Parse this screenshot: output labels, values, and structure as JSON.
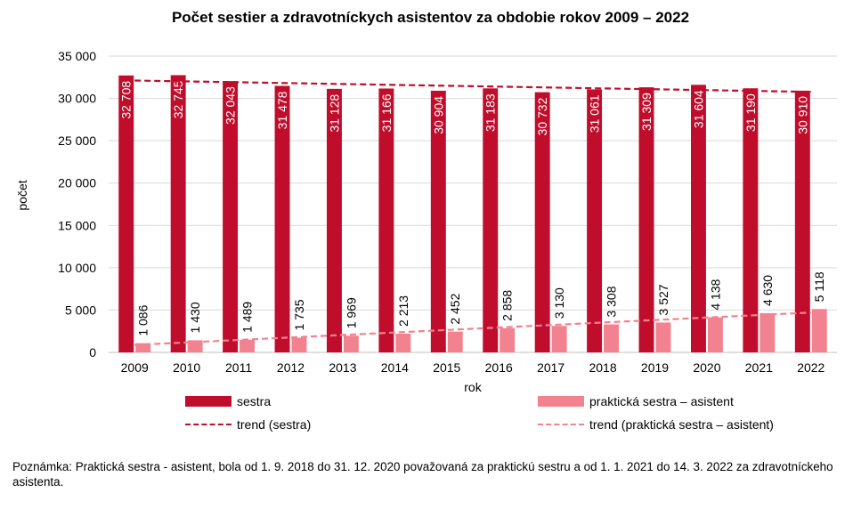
{
  "chart_data": {
    "type": "bar",
    "title": "Počet sestier a zdravotníckych asistentov za obdobie rokov 2009 – 2022",
    "xlabel": "rok",
    "ylabel": "počet",
    "ylim": [
      0,
      35000
    ],
    "yticks": [
      0,
      5000,
      10000,
      15000,
      20000,
      25000,
      30000,
      35000
    ],
    "ytick_labels": [
      "0",
      "5 000",
      "10 000",
      "15 000",
      "20 000",
      "25 000",
      "30 000",
      "35 000"
    ],
    "categories": [
      "2009",
      "2010",
      "2011",
      "2012",
      "2013",
      "2014",
      "2015",
      "2016",
      "2017",
      "2018",
      "2019",
      "2020",
      "2021",
      "2022"
    ],
    "series": [
      {
        "name": "sestra",
        "color": "#c00d2b",
        "values": [
          32708,
          32745,
          32043,
          31478,
          31128,
          31166,
          30904,
          31183,
          30732,
          31061,
          31309,
          31604,
          31190,
          30910
        ],
        "labels": [
          "32 708",
          "32 745",
          "32 043",
          "31 478",
          "31 128",
          "31 166",
          "30 904",
          "31 183",
          "30 732",
          "31 061",
          "31 309",
          "31 604",
          "31 190",
          "30 910"
        ]
      },
      {
        "name": "praktická sestra – asistent",
        "color": "#f2828f",
        "values": [
          1086,
          1430,
          1489,
          1735,
          1969,
          2213,
          2452,
          2858,
          3130,
          3308,
          3527,
          4138,
          4630,
          5118
        ],
        "labels": [
          "1 086",
          "1 430",
          "1 489",
          "1 735",
          "1 969",
          "2 213",
          "2 452",
          "2 858",
          "3 130",
          "3 308",
          "3 527",
          "4 138",
          "4 630",
          "5 118"
        ]
      }
    ],
    "trendlines": [
      {
        "name": "trend (sestra)",
        "series": "sestra",
        "color": "#c00d2b",
        "style": "dashed"
      },
      {
        "name": "trend (praktická sestra – asistent)",
        "series": "praktická sestra – asistent",
        "color": "#f2828f",
        "style": "dashed"
      }
    ],
    "grid": true,
    "legend": "bottom"
  },
  "note": "Poznámka: Praktická sestra - asistent, bola od 1. 9. 2018 do 31. 12. 2020 považovaná za praktickú sestru a od 1. 1. 2021 do 14. 3. 2022 za zdravotníckeho asistenta."
}
